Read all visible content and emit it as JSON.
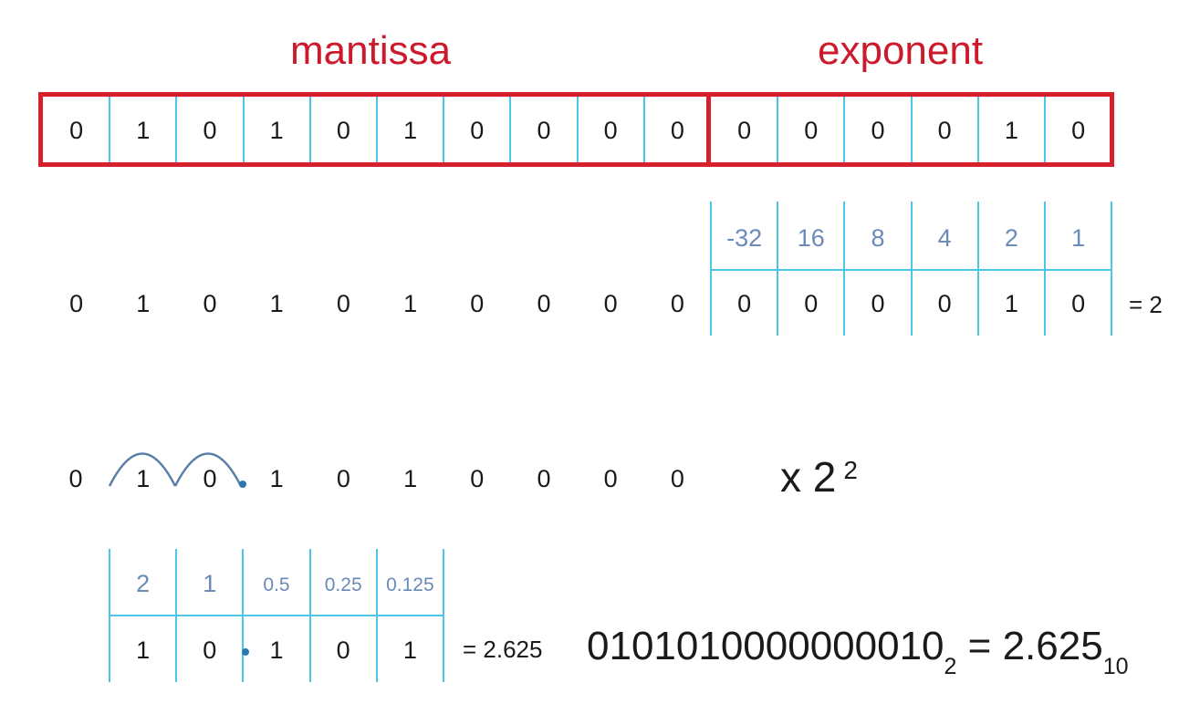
{
  "labels": {
    "mantissa": "mantissa",
    "exponent": "exponent"
  },
  "register": {
    "bits": [
      "0",
      "1",
      "0",
      "1",
      "0",
      "1",
      "0",
      "0",
      "0",
      "0",
      "0",
      "0",
      "0",
      "0",
      "1",
      "0"
    ]
  },
  "row2": {
    "mantissa_bits": [
      "0",
      "1",
      "0",
      "1",
      "0",
      "1",
      "0",
      "0",
      "0",
      "0"
    ],
    "exponent_place_values": [
      "-32",
      "16",
      "8",
      "4",
      "2",
      "1"
    ],
    "exponent_bits": [
      "0",
      "0",
      "0",
      "0",
      "1",
      "0"
    ],
    "exponent_result": "= 2"
  },
  "row3": {
    "shifted_bits": [
      "0",
      "1",
      "0",
      "1",
      "0",
      "1",
      "0",
      "0",
      "0",
      "0"
    ],
    "multiplier_base": "x  2",
    "multiplier_exponent": "2"
  },
  "row4": {
    "place_values": [
      "2",
      "1",
      "0.5",
      "0.25",
      "0.125"
    ],
    "bits": [
      "1",
      "0",
      "1",
      "0",
      "1"
    ],
    "result": "= 2.625",
    "final_binary": "0101010000000010",
    "final_binary_base": "2",
    "final_equals": " = 2.625",
    "final_decimal_base": "10"
  },
  "colors": {
    "red": "#d8202c",
    "cyan": "#4cc5e6",
    "blue_text": "#6a8ab8",
    "dot": "#2a78b0"
  }
}
